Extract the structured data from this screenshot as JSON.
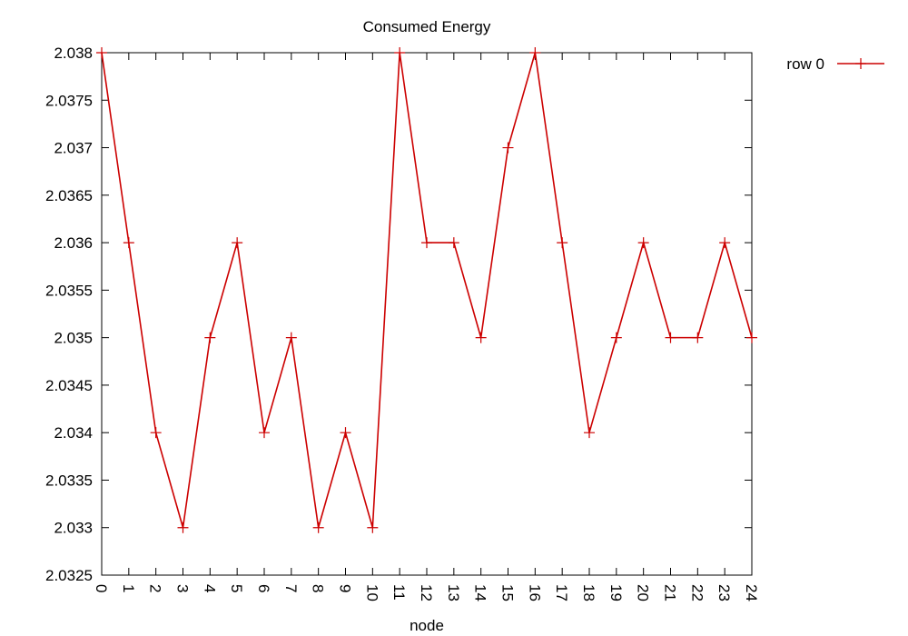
{
  "chart_data": {
    "type": "line",
    "title": "Consumed Energy",
    "xlabel": "node",
    "ylabel": "",
    "xlim": [
      0,
      24
    ],
    "ylim": [
      2.0325,
      2.038
    ],
    "x": [
      0,
      1,
      2,
      3,
      4,
      5,
      6,
      7,
      8,
      9,
      10,
      11,
      12,
      13,
      14,
      15,
      16,
      17,
      18,
      19,
      20,
      21,
      22,
      23,
      24
    ],
    "x_tick_labels": [
      "0",
      "1",
      "2",
      "3",
      "4",
      "5",
      "6",
      "7",
      "8",
      "9",
      "10",
      "11",
      "12",
      "13",
      "14",
      "15",
      "16",
      "17",
      "18",
      "19",
      "20",
      "21",
      "22",
      "23",
      "24"
    ],
    "y_ticks": [
      2.0325,
      2.033,
      2.0335,
      2.034,
      2.0345,
      2.035,
      2.0355,
      2.036,
      2.0365,
      2.037,
      2.0375,
      2.038
    ],
    "y_tick_labels": [
      "2.0325",
      "2.033",
      "2.0335",
      "2.034",
      "2.0345",
      "2.035",
      "2.0355",
      "2.036",
      "2.0365",
      "2.037",
      "2.0375",
      "2.038"
    ],
    "grid": false,
    "legend_position": "outside-top-right",
    "series": [
      {
        "name": "row 0",
        "color": "#cc0000",
        "marker": "plus",
        "values": [
          2.038,
          2.036,
          2.034,
          2.033,
          2.035,
          2.036,
          2.034,
          2.035,
          2.033,
          2.034,
          2.033,
          2.038,
          2.036,
          2.036,
          2.035,
          2.037,
          2.038,
          2.036,
          2.034,
          2.035,
          2.036,
          2.035,
          2.035,
          2.036,
          2.035
        ]
      }
    ]
  }
}
